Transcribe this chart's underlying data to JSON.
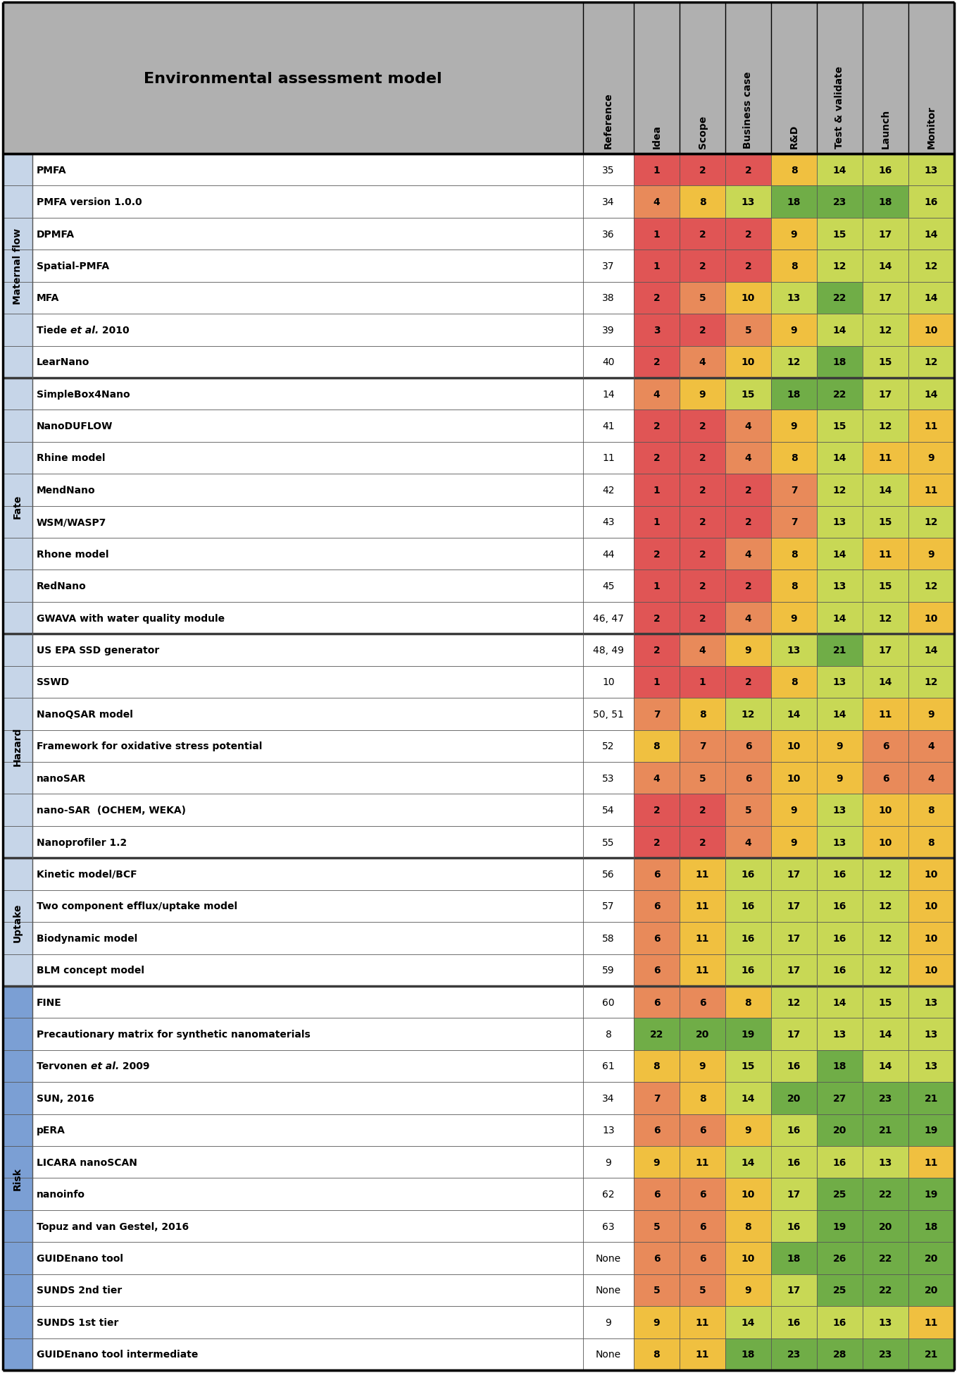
{
  "title": "Environmental assessment model",
  "col_headers": [
    "Reference",
    "Idea",
    "Scope",
    "Business case",
    "R&D",
    "Test & validate",
    "Launch",
    "Monitor"
  ],
  "sections": [
    {
      "name": "Maternal flow",
      "color": "#c6d5e8",
      "rows": [
        {
          "model": "PMFA",
          "ref": "35",
          "values": [
            1,
            2,
            2,
            8,
            14,
            16,
            13
          ],
          "italic_parts": []
        },
        {
          "model": "PMFA version 1.0.0",
          "ref": "34",
          "values": [
            4,
            8,
            13,
            18,
            23,
            18,
            16
          ],
          "italic_parts": []
        },
        {
          "model": "DPMFA",
          "ref": "36",
          "values": [
            1,
            2,
            2,
            9,
            15,
            17,
            14
          ],
          "italic_parts": []
        },
        {
          "model": "Spatial-PMFA",
          "ref": "37",
          "values": [
            1,
            2,
            2,
            8,
            12,
            14,
            12
          ],
          "italic_parts": []
        },
        {
          "model": "MFA",
          "ref": "38",
          "values": [
            2,
            5,
            10,
            13,
            22,
            17,
            14
          ],
          "italic_parts": []
        },
        {
          "model": "Tiede et al. 2010",
          "ref": "39",
          "values": [
            3,
            2,
            5,
            9,
            14,
            12,
            10
          ],
          "italic_parts": [
            "et al."
          ]
        },
        {
          "model": "LearNano",
          "ref": "40",
          "values": [
            2,
            4,
            10,
            12,
            18,
            15,
            12
          ],
          "italic_parts": []
        }
      ]
    },
    {
      "name": "Fate",
      "color": "#c6d5e8",
      "rows": [
        {
          "model": "SimpleBox4Nano",
          "ref": "14",
          "values": [
            4,
            9,
            15,
            18,
            22,
            17,
            14
          ],
          "italic_parts": []
        },
        {
          "model": "NanoDUFLOW",
          "ref": "41",
          "values": [
            2,
            2,
            4,
            9,
            15,
            12,
            11
          ],
          "italic_parts": []
        },
        {
          "model": "Rhine model",
          "ref": "11",
          "values": [
            2,
            2,
            4,
            8,
            14,
            11,
            9
          ],
          "italic_parts": []
        },
        {
          "model": "MendNano",
          "ref": "42",
          "values": [
            1,
            2,
            2,
            7,
            12,
            14,
            11
          ],
          "italic_parts": []
        },
        {
          "model": "WSM/WASP7",
          "ref": "43",
          "values": [
            1,
            2,
            2,
            7,
            13,
            15,
            12
          ],
          "italic_parts": []
        },
        {
          "model": "Rhone model",
          "ref": "44",
          "values": [
            2,
            2,
            4,
            8,
            14,
            11,
            9
          ],
          "italic_parts": []
        },
        {
          "model": "RedNano",
          "ref": "45",
          "values": [
            1,
            2,
            2,
            8,
            13,
            15,
            12
          ],
          "italic_parts": []
        },
        {
          "model": "GWAVA with water quality module",
          "ref": "46, 47",
          "values": [
            2,
            2,
            4,
            9,
            14,
            12,
            10
          ],
          "italic_parts": []
        }
      ]
    },
    {
      "name": "Hazard",
      "color": "#c6d5e8",
      "rows": [
        {
          "model": "US EPA SSD generator",
          "ref": "48, 49",
          "values": [
            2,
            4,
            9,
            13,
            21,
            17,
            14
          ],
          "italic_parts": []
        },
        {
          "model": "SSWD",
          "ref": "10",
          "values": [
            1,
            1,
            2,
            8,
            13,
            14,
            12
          ],
          "italic_parts": []
        },
        {
          "model": "NanoQSAR model",
          "ref": "50, 51",
          "values": [
            7,
            8,
            12,
            14,
            14,
            11,
            9
          ],
          "italic_parts": []
        },
        {
          "model": "Framework for oxidative stress potential",
          "ref": "52",
          "values": [
            8,
            7,
            6,
            10,
            9,
            6,
            4
          ],
          "italic_parts": []
        },
        {
          "model": "nanoSAR",
          "ref": "53",
          "values": [
            4,
            5,
            6,
            10,
            9,
            6,
            4
          ],
          "italic_parts": []
        },
        {
          "model": "nano-SAR  (OCHEM, WEKA)",
          "ref": "54",
          "values": [
            2,
            2,
            5,
            9,
            13,
            10,
            8
          ],
          "italic_parts": []
        },
        {
          "model": "Nanoprofiler 1.2",
          "ref": "55",
          "values": [
            2,
            2,
            4,
            9,
            13,
            10,
            8
          ],
          "italic_parts": []
        }
      ]
    },
    {
      "name": "Uptake",
      "color": "#c6d5e8",
      "rows": [
        {
          "model": "Kinetic model/BCF",
          "ref": "56",
          "values": [
            6,
            11,
            16,
            17,
            16,
            12,
            10
          ],
          "italic_parts": []
        },
        {
          "model": "Two component efflux/uptake model",
          "ref": "57",
          "values": [
            6,
            11,
            16,
            17,
            16,
            12,
            10
          ],
          "italic_parts": []
        },
        {
          "model": "Biodynamic model",
          "ref": "58",
          "values": [
            6,
            11,
            16,
            17,
            16,
            12,
            10
          ],
          "italic_parts": []
        },
        {
          "model": "BLM concept model",
          "ref": "59",
          "values": [
            6,
            11,
            16,
            17,
            16,
            12,
            10
          ],
          "italic_parts": []
        }
      ]
    },
    {
      "name": "Risk",
      "color": "#7b9fd4",
      "rows": [
        {
          "model": "FINE",
          "ref": "60",
          "values": [
            6,
            6,
            8,
            12,
            14,
            15,
            13
          ],
          "italic_parts": []
        },
        {
          "model": "Precautionary matrix for synthetic nanomaterials",
          "ref": "8",
          "values": [
            22,
            20,
            19,
            17,
            13,
            14,
            13
          ],
          "italic_parts": []
        },
        {
          "model": "Tervonen et al. 2009",
          "ref": "61",
          "values": [
            8,
            9,
            15,
            16,
            18,
            14,
            13
          ],
          "italic_parts": [
            "et al."
          ]
        },
        {
          "model": "SUN, 2016",
          "ref": "34",
          "values": [
            7,
            8,
            14,
            20,
            27,
            23,
            21
          ],
          "italic_parts": []
        },
        {
          "model": "pERA",
          "ref": "13",
          "values": [
            6,
            6,
            9,
            16,
            20,
            21,
            19
          ],
          "italic_parts": []
        },
        {
          "model": "LICARA nanoSCAN",
          "ref": "9",
          "values": [
            9,
            11,
            14,
            16,
            16,
            13,
            11
          ],
          "italic_parts": []
        },
        {
          "model": "nanoinfo",
          "ref": "62",
          "values": [
            6,
            6,
            10,
            17,
            25,
            22,
            19
          ],
          "italic_parts": []
        },
        {
          "model": "Topuz and van Gestel, 2016",
          "ref": "63",
          "values": [
            5,
            6,
            8,
            16,
            19,
            20,
            18
          ],
          "italic_parts": []
        },
        {
          "model": "GUIDEnano tool",
          "ref": "None",
          "values": [
            6,
            6,
            10,
            18,
            26,
            22,
            20
          ],
          "italic_parts": []
        },
        {
          "model": "SUNDS 2nd tier",
          "ref": "None",
          "values": [
            5,
            5,
            9,
            17,
            25,
            22,
            20
          ],
          "italic_parts": []
        },
        {
          "model": "SUNDS 1st tier",
          "ref": "9",
          "values": [
            9,
            11,
            14,
            16,
            16,
            13,
            11
          ],
          "italic_parts": []
        },
        {
          "model": "GUIDEnano tool intermediate",
          "ref": "None",
          "values": [
            8,
            11,
            18,
            23,
            28,
            23,
            21
          ],
          "italic_parts": []
        }
      ]
    }
  ],
  "color_thresholds": [
    3,
    7,
    11,
    17
  ],
  "cell_colors": [
    "#e05555",
    "#e88a5a",
    "#f0c040",
    "#c8d855",
    "#70ad47"
  ],
  "header_bg": "#b0b0b0",
  "section_divider_color": "#3a3a3a",
  "inner_line_color": "#555555",
  "outer_border_color": "#000000"
}
